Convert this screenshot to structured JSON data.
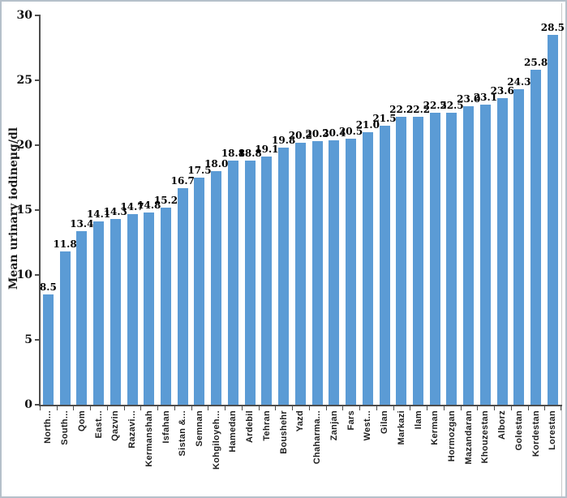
{
  "chart_data": {
    "type": "bar",
    "title": "",
    "xlabel": "",
    "ylabel": "Mean urinary iodineμg/dl",
    "ylim": [
      0,
      30
    ],
    "ytick_step": 5,
    "ytick_labels": [
      "0",
      "5",
      "10",
      "15",
      "20",
      "25",
      "30"
    ],
    "grid": false,
    "legend_position": "none",
    "bar_color": "#5B9BD5",
    "categories": [
      "North...",
      "South...",
      "Qom",
      "East...",
      "Qazvin",
      "Razavi...",
      "Kermanshah",
      "Isfahan",
      "Sistan &...",
      "Semnan",
      "Kohgiloyeh...",
      "Hamedan",
      "Ardebil",
      "Tehran",
      "Boushehr",
      "Yazd",
      "Chaharma...",
      "Zanjan",
      "Fars",
      "West...",
      "Gilan",
      "Markazi",
      "Ilam",
      "Kerman",
      "Hormozgan",
      "Mazandaran",
      "Khouzestan",
      "Alborz",
      "Golestan",
      "Kordestan",
      "Lorestan"
    ],
    "values": [
      8.5,
      11.8,
      13.4,
      14.1,
      14.3,
      14.7,
      14.8,
      15.2,
      16.7,
      17.5,
      18.0,
      18.8,
      18.8,
      19.1,
      19.8,
      20.2,
      20.3,
      20.4,
      20.5,
      21.0,
      21.5,
      22.2,
      22.2,
      22.5,
      22.5,
      23.0,
      23.1,
      23.6,
      24.3,
      25.8,
      28.5
    ],
    "value_labels": [
      "8.5",
      "11.8",
      "13.4",
      "14.1",
      "14.3",
      "14.7",
      "14.8",
      "15.2",
      "16.7",
      "17.5",
      "18.0",
      "18.8",
      "18.8",
      "19.1",
      "19.8",
      "20.2",
      "20.3",
      "20.4",
      "20.5",
      "21.0",
      "21.5",
      "22.2",
      "22.2",
      "22.5",
      "22.5",
      "23.0",
      "23.1",
      "23.6",
      "24.3",
      "25.8",
      "28.5"
    ]
  }
}
